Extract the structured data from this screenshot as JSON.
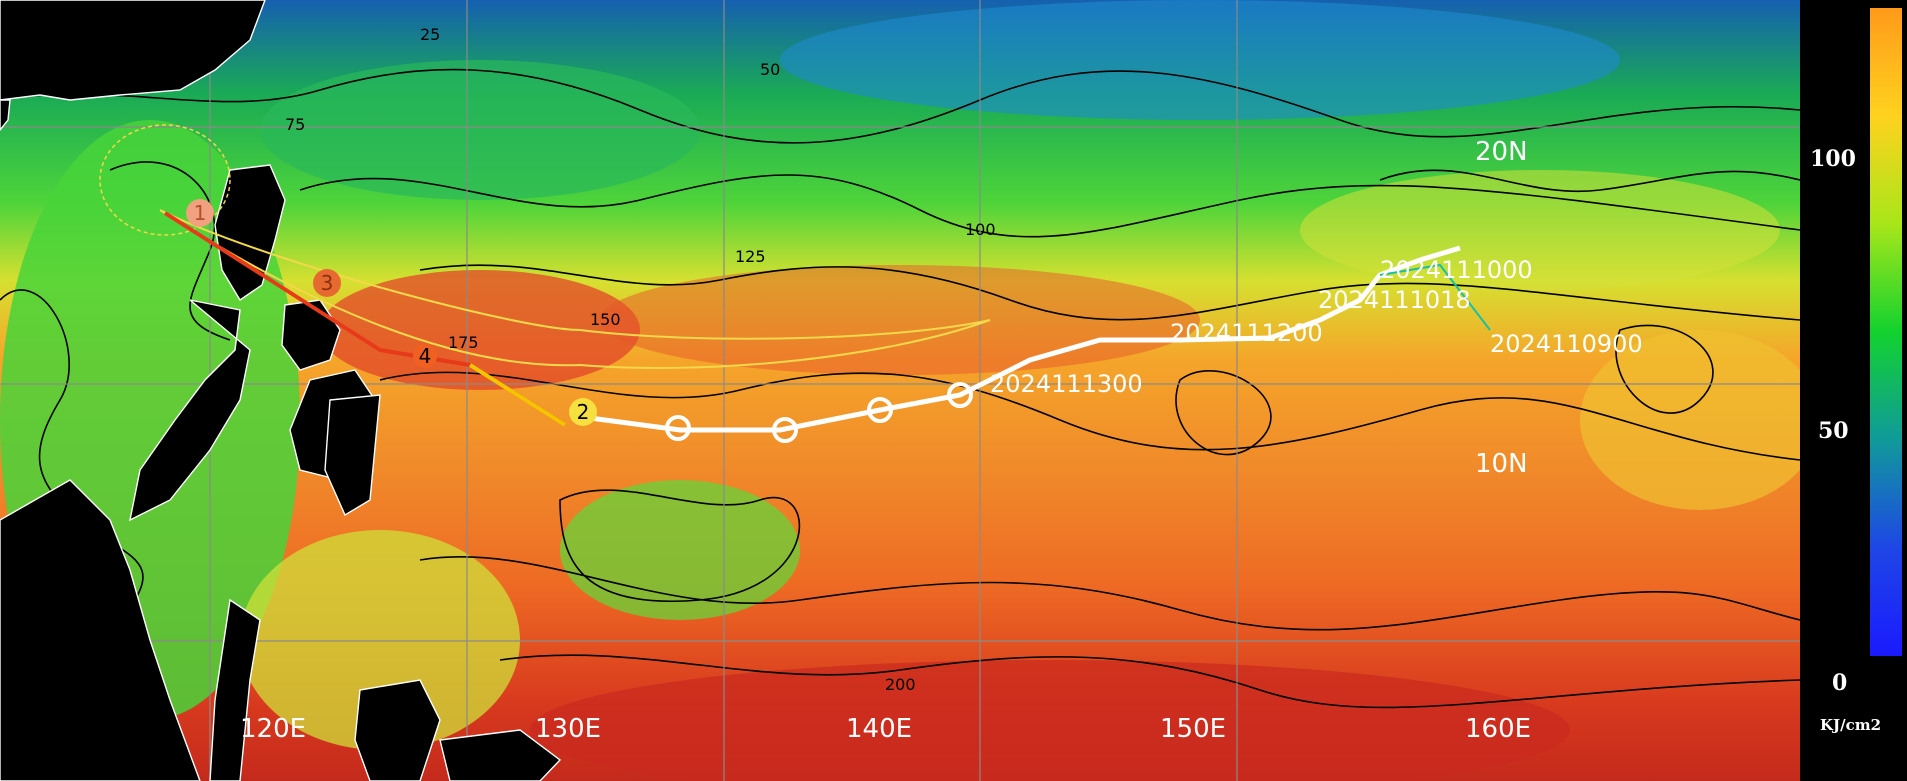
{
  "map": {
    "lat_labels": [
      "20N",
      "10N"
    ],
    "lon_labels": [
      "120E",
      "130E",
      "140E",
      "150E",
      "160E"
    ],
    "track_labels": [
      "2024111000",
      "2024111018",
      "2024110900",
      "2024111200",
      "2024111300"
    ],
    "forecast_points": [
      "1",
      "3",
      "4",
      "2"
    ],
    "contour_values": [
      "25",
      "50",
      "75",
      "100",
      "125",
      "150",
      "175",
      "200"
    ],
    "colors": {
      "land": "#000000",
      "coast": "#ffffff",
      "observed_track": "#ffffff",
      "forecast_track_near": "#e63a1a",
      "forecast_track_far": "#f5c400",
      "cone_outline": "#f2d84a",
      "grid": "#8a8a8a"
    }
  },
  "colorbar": {
    "ticks": [
      "100",
      "50",
      "0"
    ],
    "unit": "KJ/cm2",
    "colors": [
      "#ff9a1a",
      "#ffd21e",
      "#a8e61a",
      "#12d22e",
      "#109a9a",
      "#1e46e6",
      "#1a1aff"
    ]
  }
}
